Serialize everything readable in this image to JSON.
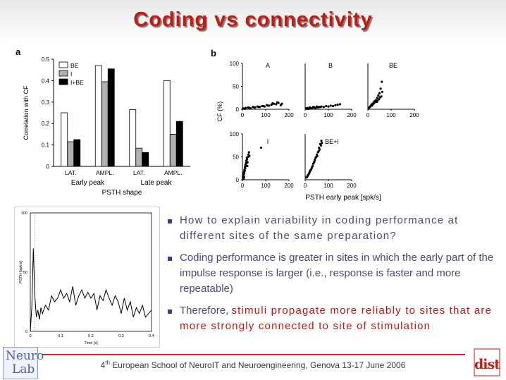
{
  "title": "Coding vs connectivity",
  "panel_a": {
    "label": "a",
    "ylabel": "Correlation with CF",
    "yticks": [
      "0",
      "0.1",
      "0.2",
      "0.3",
      "0.4",
      "0.5"
    ],
    "legend": [
      "BE",
      "I",
      "I+BE"
    ],
    "groups": [
      "LAT.",
      "AMPL.",
      "LAT.",
      "AMPL."
    ],
    "group_labels": [
      "Early peak",
      "Late peak"
    ],
    "xlabel": "PSTH shape",
    "colors": {
      "BE": "#ffffff",
      "I": "#b0b0b0",
      "I+BE": "#000000"
    }
  },
  "panel_b": {
    "label": "b",
    "ylabel": "CF (%)",
    "xlabel": "PSTH early peak [spk/s]",
    "subplot_titles": [
      "A",
      "B",
      "BE",
      "I",
      "BE+I"
    ],
    "yticks": [
      "0",
      "50",
      "100"
    ],
    "xticks": [
      "0",
      "100",
      "200"
    ]
  },
  "panel_c": {
    "ylabel": "PSTH [spk/s]",
    "xlabel": "Time [s]",
    "yticks": [
      "0",
      "50",
      "100"
    ],
    "xticks": [
      "0",
      "0.1",
      "0.2",
      "0.3",
      "0.4"
    ]
  },
  "bullets": [
    {
      "text": "How to explain variability in coding performance at different sites of the same preparation?"
    },
    {
      "text": "Coding performance is greater in sites in which the early part of the impulse response is larger (i.e., response is faster and more repeatable)"
    },
    {
      "prefix": "Therefore, ",
      "highlight": "stimuli propagate more reliably to sites that are more strongly connected to site of stimulation"
    }
  ],
  "footer": {
    "sup": "th",
    "num": "4",
    "text": " European School of NeuroIT and Neuroengineering, Genova 13-17 June 2006"
  },
  "logo_left": {
    "line1": "Neuro",
    "line2": "Lab"
  },
  "logo_right": {
    "text": "dist"
  },
  "chart_data": [
    {
      "type": "bar",
      "categories": [
        "Early peak LAT.",
        "Early peak AMPL.",
        "Late peak LAT.",
        "Late peak AMPL."
      ],
      "series": [
        {
          "name": "BE",
          "values": [
            0.25,
            0.47,
            0.265,
            0.4
          ]
        },
        {
          "name": "I",
          "values": [
            0.115,
            0.395,
            0.085,
            0.15
          ]
        },
        {
          "name": "I+BE",
          "values": [
            0.125,
            0.455,
            0.065,
            0.21
          ]
        }
      ],
      "xlabel": "PSTH shape",
      "ylabel": "Correlation with CF",
      "ylim": [
        0,
        0.5
      ]
    },
    {
      "type": "scatter",
      "xlabel": "PSTH early peak [spk/s]",
      "ylabel": "CF (%)",
      "xlim": [
        0,
        200
      ],
      "ylim": [
        0,
        100
      ],
      "panels": [
        {
          "name": "A",
          "x": [
            5,
            15,
            25,
            35,
            45,
            55,
            65,
            75,
            85,
            95,
            105,
            115,
            125,
            135,
            145,
            155,
            165,
            10,
            30,
            50,
            70,
            90,
            110,
            130,
            150,
            170
          ],
          "y": [
            2,
            3,
            4,
            2,
            5,
            4,
            6,
            5,
            7,
            6,
            9,
            8,
            10,
            12,
            11,
            14,
            9,
            1,
            3,
            4,
            5,
            7,
            8,
            13,
            15,
            12
          ]
        },
        {
          "name": "B",
          "x": [
            5,
            10,
            15,
            20,
            25,
            30,
            35,
            40,
            45,
            50,
            55,
            60,
            70,
            80,
            90,
            100,
            110,
            120,
            130,
            140,
            150,
            8,
            22,
            38,
            65
          ],
          "y": [
            2,
            3,
            1,
            4,
            2,
            3,
            5,
            4,
            3,
            6,
            4,
            5,
            6,
            5,
            7,
            6,
            8,
            7,
            9,
            10,
            11,
            1,
            2,
            4,
            5
          ]
        },
        {
          "name": "BE",
          "x": [
            5,
            10,
            15,
            20,
            25,
            30,
            35,
            40,
            45,
            50,
            55,
            60,
            8,
            18,
            28,
            38,
            48,
            58,
            12,
            22,
            32,
            42,
            52,
            62,
            15,
            25
          ],
          "y": [
            3,
            6,
            10,
            12,
            15,
            18,
            20,
            25,
            30,
            35,
            45,
            60,
            5,
            8,
            14,
            16,
            22,
            28,
            7,
            11,
            17,
            19,
            26,
            38,
            9,
            13
          ]
        },
        {
          "name": "I",
          "x": [
            2,
            4,
            6,
            8,
            10,
            12,
            14,
            16,
            18,
            20,
            22,
            24,
            26,
            28,
            30,
            3,
            5,
            7,
            9,
            11,
            13,
            15,
            17,
            19,
            21,
            80,
            5,
            7
          ],
          "y": [
            5,
            8,
            12,
            15,
            20,
            25,
            30,
            35,
            40,
            45,
            38,
            50,
            55,
            60,
            52,
            10,
            14,
            18,
            22,
            28,
            32,
            36,
            42,
            48,
            30,
            70,
            3,
            6
          ]
        },
        {
          "name": "BE+I",
          "x": [
            5,
            10,
            15,
            20,
            25,
            30,
            35,
            40,
            45,
            50,
            55,
            60,
            65,
            70,
            8,
            12,
            18,
            22,
            28,
            32,
            38,
            42,
            48,
            52,
            58,
            62,
            68,
            72
          ],
          "y": [
            5,
            8,
            12,
            18,
            22,
            28,
            35,
            40,
            48,
            55,
            60,
            70,
            78,
            85,
            6,
            10,
            15,
            20,
            25,
            30,
            38,
            44,
            50,
            52,
            62,
            66,
            75,
            80
          ]
        }
      ]
    },
    {
      "type": "line",
      "xlabel": "Time [s]",
      "ylabel": "PSTH [spk/s]",
      "xlim": [
        0,
        0.4
      ],
      "ylim": [
        0,
        100
      ],
      "x": [
        0,
        0.005,
        0.01,
        0.015,
        0.02,
        0.025,
        0.03,
        0.035,
        0.04,
        0.05,
        0.06,
        0.07,
        0.08,
        0.09,
        0.1,
        0.11,
        0.12,
        0.13,
        0.14,
        0.15,
        0.16,
        0.17,
        0.18,
        0.19,
        0.2,
        0.21,
        0.22,
        0.23,
        0.24,
        0.25,
        0.26,
        0.27,
        0.28,
        0.29,
        0.3,
        0.31,
        0.32,
        0.33,
        0.34,
        0.35,
        0.36,
        0.37,
        0.38,
        0.39,
        0.4
      ],
      "y": [
        0,
        20,
        70,
        30,
        12,
        18,
        10,
        20,
        15,
        22,
        18,
        30,
        25,
        28,
        35,
        28,
        32,
        25,
        38,
        22,
        30,
        35,
        28,
        33,
        28,
        32,
        18,
        30,
        26,
        35,
        28,
        22,
        30,
        25,
        15,
        28,
        18,
        25,
        12,
        20,
        15,
        22,
        12,
        15,
        18
      ]
    }
  ]
}
